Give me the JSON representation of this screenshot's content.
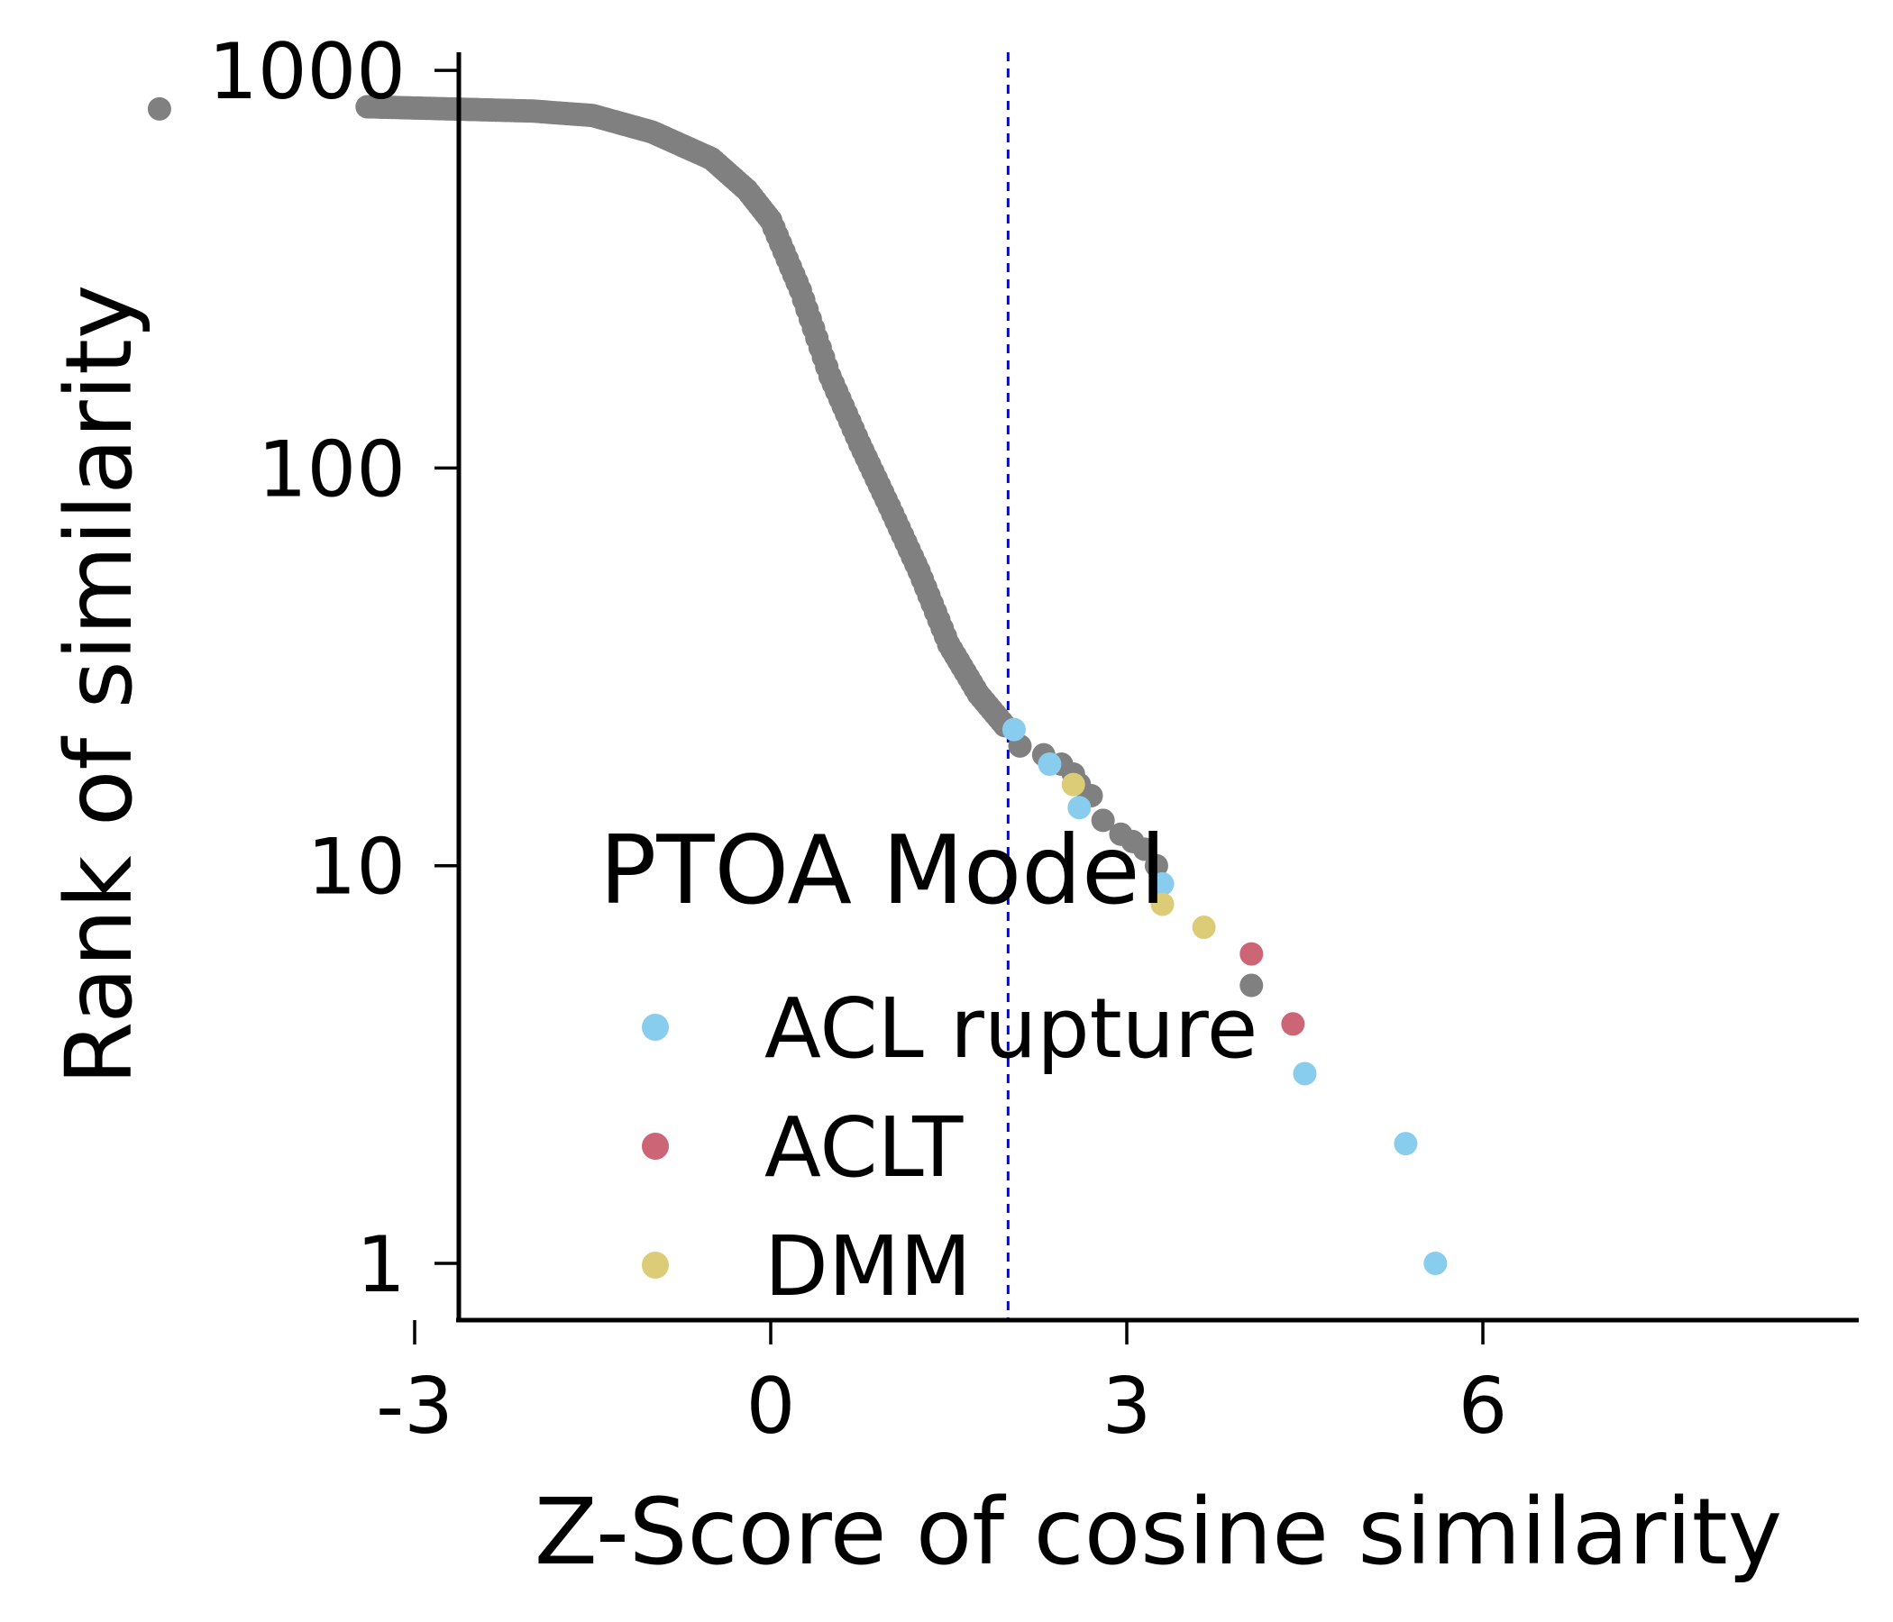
{
  "chart_data": {
    "type": "scatter",
    "xlabel": "Z-Score of cosine similarity",
    "ylabel": "Rank of similarity",
    "x_ticks": [
      "-3",
      "0",
      "3",
      "6"
    ],
    "x_tick_values": [
      -3,
      0,
      3,
      6
    ],
    "y_ticks": [
      "1000",
      "100",
      "10",
      "1"
    ],
    "y_tick_values": [
      1000,
      100,
      10,
      1
    ],
    "xlim": [
      -5.65,
      6.15
    ],
    "ylim": [
      0.72,
      1150
    ],
    "y_scale": "log",
    "grid": false,
    "threshold_line": {
      "x": 2.0,
      "color": "#0000ff",
      "style": "dashed"
    },
    "legend": {
      "title": "PTOA Model",
      "placement": "lower-left",
      "entries": [
        {
          "label": "ACL rupture",
          "color": "#88ccee"
        },
        {
          "label": "ACLT",
          "color": "#cc6677"
        },
        {
          "label": "DMM",
          "color": "#ddcc77"
        }
      ]
    },
    "background_series": {
      "color": "#808080",
      "curve": [
        [
          -3.4,
          810
        ],
        [
          -2.0,
          790
        ],
        [
          -1.5,
          770
        ],
        [
          -1.0,
          700
        ],
        [
          -0.5,
          600
        ],
        [
          -0.2,
          500
        ],
        [
          0.0,
          420
        ],
        [
          0.25,
          280
        ],
        [
          0.5,
          170
        ],
        [
          0.75,
          115
        ],
        [
          1.0,
          80
        ],
        [
          1.25,
          55
        ],
        [
          1.5,
          36
        ],
        [
          1.75,
          27
        ],
        [
          2.0,
          22
        ]
      ],
      "extra_points": [
        [
          -5.15,
          800
        ],
        [
          2.1,
          20
        ],
        [
          2.3,
          19
        ],
        [
          2.45,
          18
        ],
        [
          2.55,
          17
        ],
        [
          2.6,
          16
        ],
        [
          2.7,
          15
        ],
        [
          2.8,
          13
        ],
        [
          2.95,
          12
        ],
        [
          3.05,
          11.5
        ],
        [
          3.15,
          11
        ],
        [
          3.25,
          10
        ],
        [
          4.05,
          5
        ]
      ]
    },
    "highlighted_points": [
      {
        "x": 2.05,
        "y": 22,
        "model": "ACL rupture"
      },
      {
        "x": 2.35,
        "y": 18,
        "model": "ACL rupture"
      },
      {
        "x": 2.6,
        "y": 14,
        "model": "ACL rupture"
      },
      {
        "x": 3.3,
        "y": 9,
        "model": "ACL rupture"
      },
      {
        "x": 4.5,
        "y": 3,
        "model": "ACL rupture"
      },
      {
        "x": 5.35,
        "y": 2,
        "model": "ACL rupture"
      },
      {
        "x": 5.6,
        "y": 1,
        "model": "ACL rupture"
      },
      {
        "x": 2.55,
        "y": 16,
        "model": "DMM"
      },
      {
        "x": 3.3,
        "y": 8,
        "model": "DMM"
      },
      {
        "x": 3.65,
        "y": 7,
        "model": "DMM"
      },
      {
        "x": 4.05,
        "y": 6,
        "model": "ACLT"
      },
      {
        "x": 4.4,
        "y": 4,
        "model": "ACLT"
      }
    ]
  }
}
